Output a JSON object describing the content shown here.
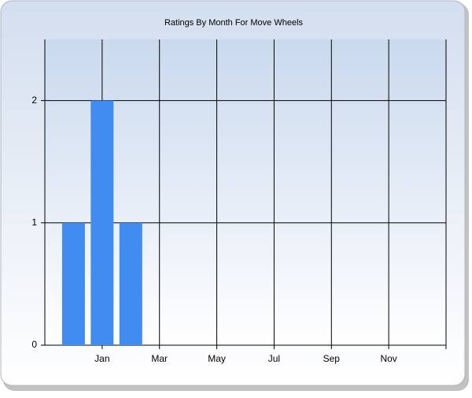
{
  "chart_data": {
    "type": "bar",
    "title": "Ratings By Month For Move Wheels",
    "categories": [
      null,
      "Jan",
      null,
      "Mar",
      null,
      "May",
      null,
      "Jul",
      null,
      "Sep",
      null,
      "Nov",
      null
    ],
    "values": [
      1,
      2,
      1,
      0,
      0,
      0,
      0,
      0,
      0,
      0,
      0,
      0,
      0
    ],
    "color": "#418cf0",
    "ylim": [
      0,
      2.5
    ],
    "yticks": [
      0,
      1,
      2
    ],
    "grid": true
  }
}
